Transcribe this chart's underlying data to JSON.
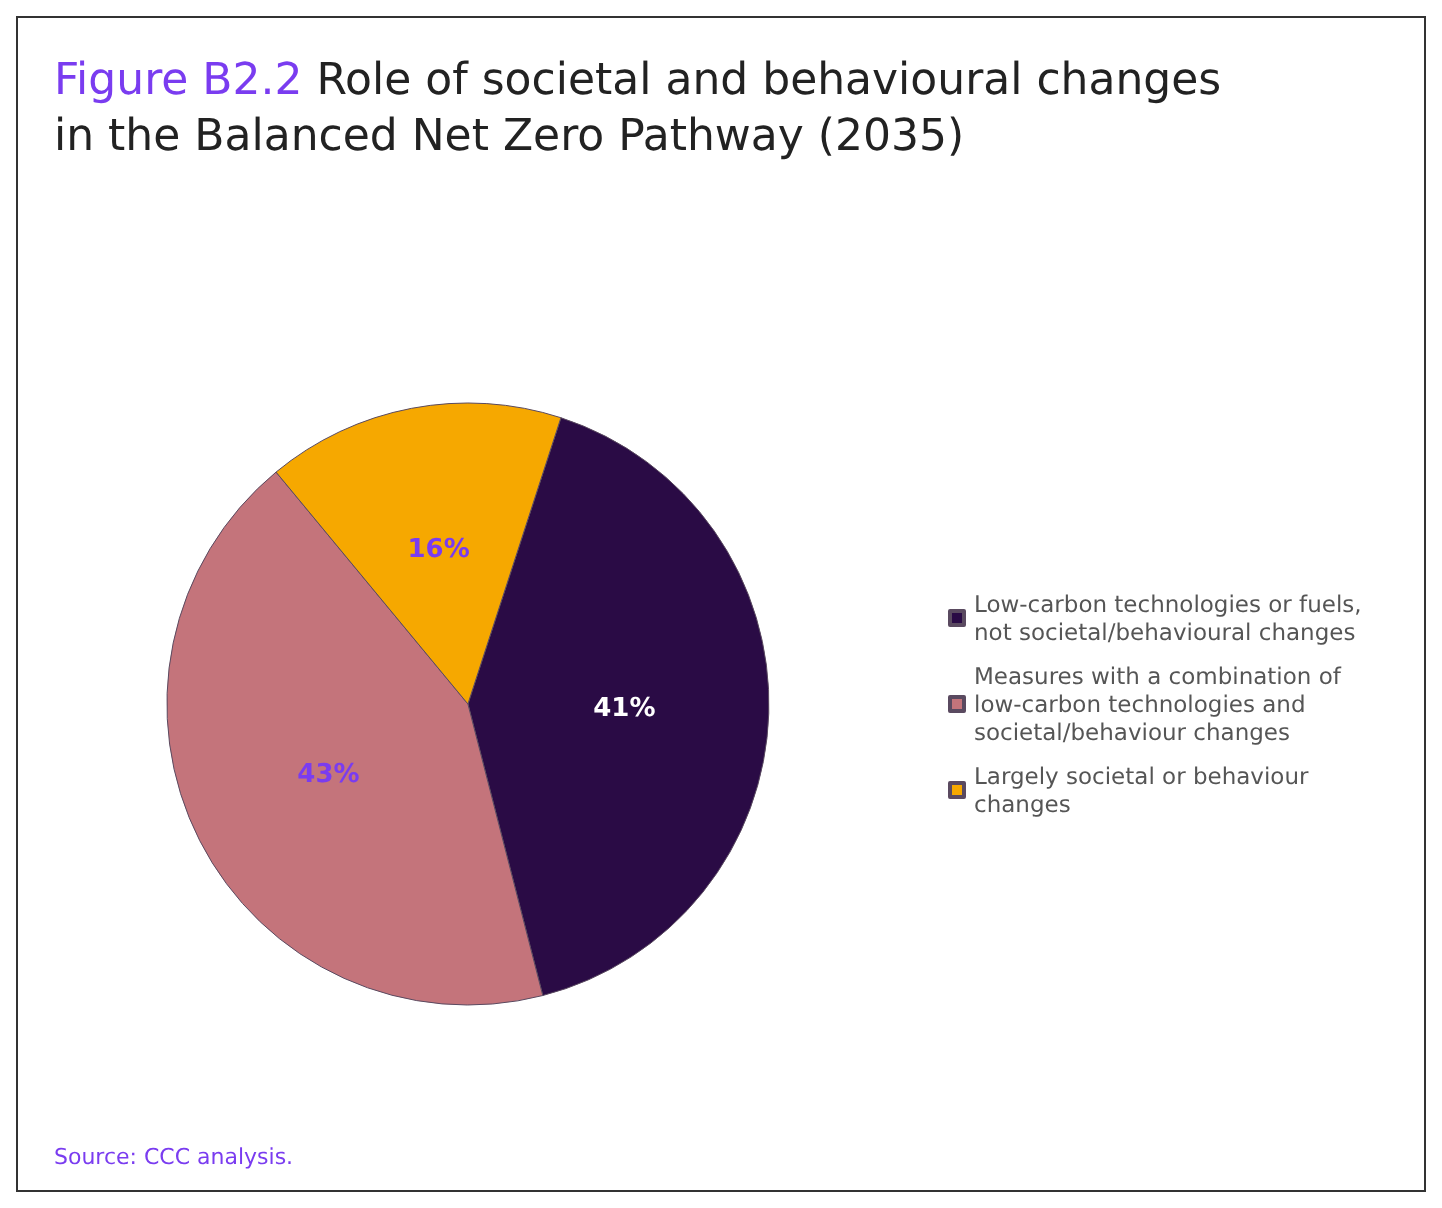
{
  "chart_data": {
    "type": "pie",
    "title": "Figure B2.2",
    "subtitle": "Role of societal and behavioural changes in the Balanced Net Zero Pathway (2035)",
    "categories": [
      "Low-carbon technologies or fuels, not societal/behavioural changes",
      "Measures with a combination of low-carbon technologies and societal/behaviour changes",
      "Largely societal or behaviour changes"
    ],
    "values": [
      41,
      43,
      16
    ],
    "colors": [
      "#2a0b45",
      "#c4747b",
      "#f6a800"
    ],
    "value_labels": [
      "41%",
      "43%",
      "16%"
    ],
    "legend": "right",
    "annotations": [
      "Source: CCC analysis."
    ]
  }
}
